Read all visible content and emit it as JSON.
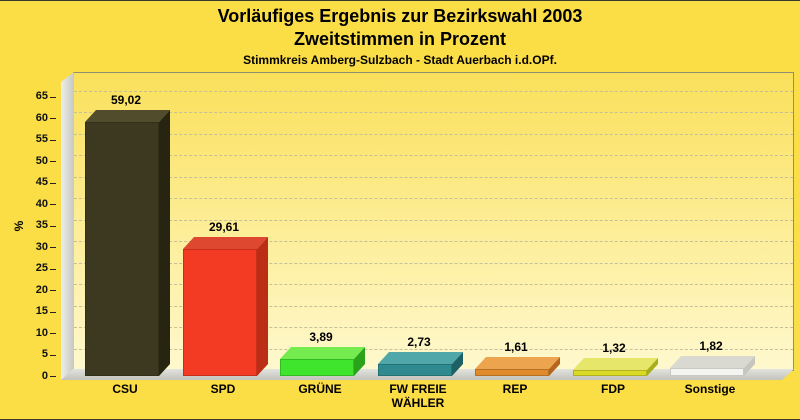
{
  "title": {
    "line1": "Vorläufiges Ergebnis zur Bezirkswahl 2003",
    "line2": "Zweitstimmen in Prozent"
  },
  "subtitle": "Stimmkreis Amberg-Sulzbach - Stadt Auerbach i.d.OPf.",
  "chart_data": {
    "type": "bar",
    "title": "Vorläufiges Ergebnis zur Bezirkswahl 2003 - Zweitstimmen in Prozent",
    "subtitle": "Stimmkreis Amberg-Sulzbach - Stadt Auerbach i.d.OPf.",
    "categories": [
      "CSU",
      "SPD",
      "GRÜNE",
      "FW FREIE WÄHLER",
      "REP",
      "FDP",
      "Sonstige"
    ],
    "categories_display": [
      "CSU",
      "SPD",
      "GRÜNE",
      "FW FREIE\nWÄHLER",
      "REP",
      "FDP",
      "Sonstige"
    ],
    "values": [
      59.02,
      29.61,
      3.89,
      2.73,
      1.61,
      1.32,
      1.82
    ],
    "value_labels": [
      "59,02",
      "29,61",
      "3,89",
      "2,73",
      "1,61",
      "1,32",
      "1,82"
    ],
    "xlabel": "",
    "ylabel": "%",
    "ylim": [
      0,
      65
    ],
    "yticks": [
      0,
      5,
      10,
      15,
      20,
      25,
      30,
      35,
      40,
      45,
      50,
      55,
      60,
      65
    ],
    "grid": "dashed-horizontal",
    "legend": "none",
    "style": "3d-bars",
    "bar_colors": [
      {
        "party": "CSU",
        "front": "#3C3920",
        "top": "#514D2C",
        "side": "#272512"
      },
      {
        "party": "SPD",
        "front": "#F23B22",
        "top": "#DE4830",
        "side": "#BB2D14"
      },
      {
        "party": "GRÜNE",
        "front": "#3FE52C",
        "top": "#74EB4F",
        "side": "#2AA31B"
      },
      {
        "party": "FW",
        "front": "#2E8A8E",
        "top": "#4FA7A9",
        "side": "#1E6165"
      },
      {
        "party": "REP",
        "front": "#E08A2E",
        "top": "#ECA54E",
        "side": "#B5651D"
      },
      {
        "party": "FDP",
        "front": "#D9D926",
        "top": "#E6E66A",
        "side": "#A8AD1A"
      },
      {
        "party": "Sonstige",
        "front": "#F4F4F0",
        "top": "#D9D9D1",
        "side": "#C6C6BE"
      }
    ]
  },
  "colors": {
    "page_background": "#FBDD46",
    "plot_background_top": "#FAE05A",
    "plot_background_bottom": "#FEF8CE",
    "gridline": "#C6C09A",
    "wall_border": "#8F8F74",
    "floor_gray": "#D5D5D0",
    "text": "#000000"
  }
}
